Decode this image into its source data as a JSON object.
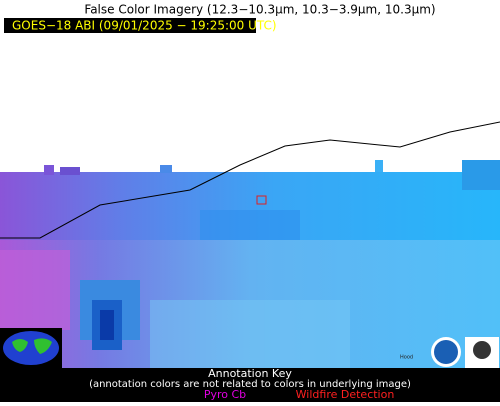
{
  "header": {
    "title": "False Color Imagery (12.3−10.3µm, 10.3−3.9µm, 10.3µm)",
    "subtitle": "GOES−18 ABI (09/01/2025 − 19:25:00 UTC)"
  },
  "map": {
    "place_label": "Hood"
  },
  "annotation_key": {
    "title": "Annotation Key",
    "note": "(annotation colors are not related to colors in underlying image)",
    "items": [
      "Pyro Cb",
      "Wildfire Detection"
    ]
  }
}
